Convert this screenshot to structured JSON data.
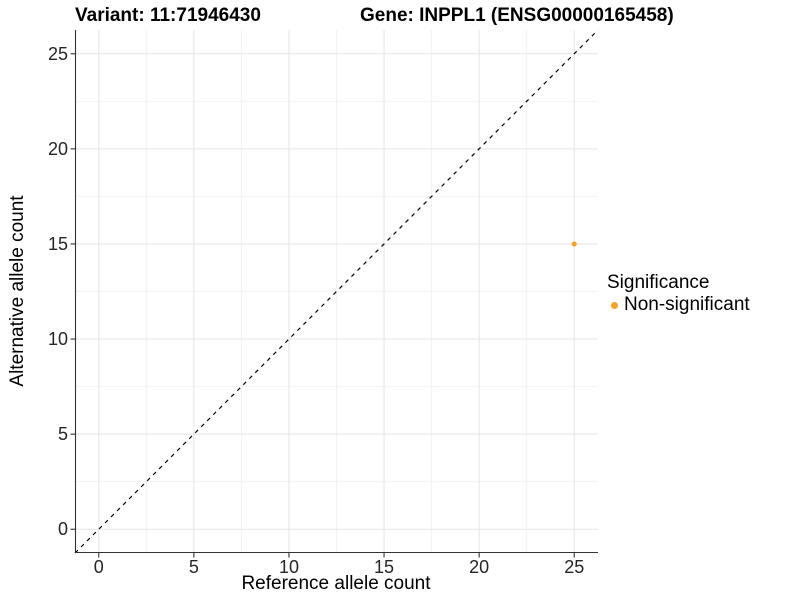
{
  "chart_data": {
    "type": "scatter",
    "title_left": "Variant: 11:71946430",
    "title_right": "Gene: INPPL1 (ENSG00000165458)",
    "xlabel": "Reference allele count",
    "ylabel": "Alternative allele count",
    "xlim": [
      -1.25,
      26.25
    ],
    "ylim": [
      -1.25,
      26.25
    ],
    "x_ticks": [
      0,
      5,
      10,
      15,
      20,
      25
    ],
    "y_ticks": [
      0,
      5,
      10,
      15,
      20,
      25
    ],
    "x_minor_ticks": [
      2.5,
      7.5,
      12.5,
      17.5,
      22.5
    ],
    "y_minor_ticks": [
      2.5,
      7.5,
      12.5,
      17.5,
      22.5
    ],
    "grid": "on",
    "points": [
      {
        "x": 25,
        "y": 15,
        "series": "Non-significant",
        "color": "#F9A22B"
      }
    ],
    "reference_line": {
      "type": "identity",
      "style": "dashed",
      "color": "#000000"
    },
    "legend": {
      "title": "Significance",
      "position": "right",
      "entries": [
        {
          "label": "Non-significant",
          "color": "#F9A22B"
        }
      ]
    }
  },
  "colors": {
    "background": "#ffffff",
    "axis_line": "#333333",
    "tick_label": "#262626",
    "grid_major": "#e5e5e5",
    "grid_minor": "#f2f2f2",
    "point_orange": "#F9A22B"
  }
}
